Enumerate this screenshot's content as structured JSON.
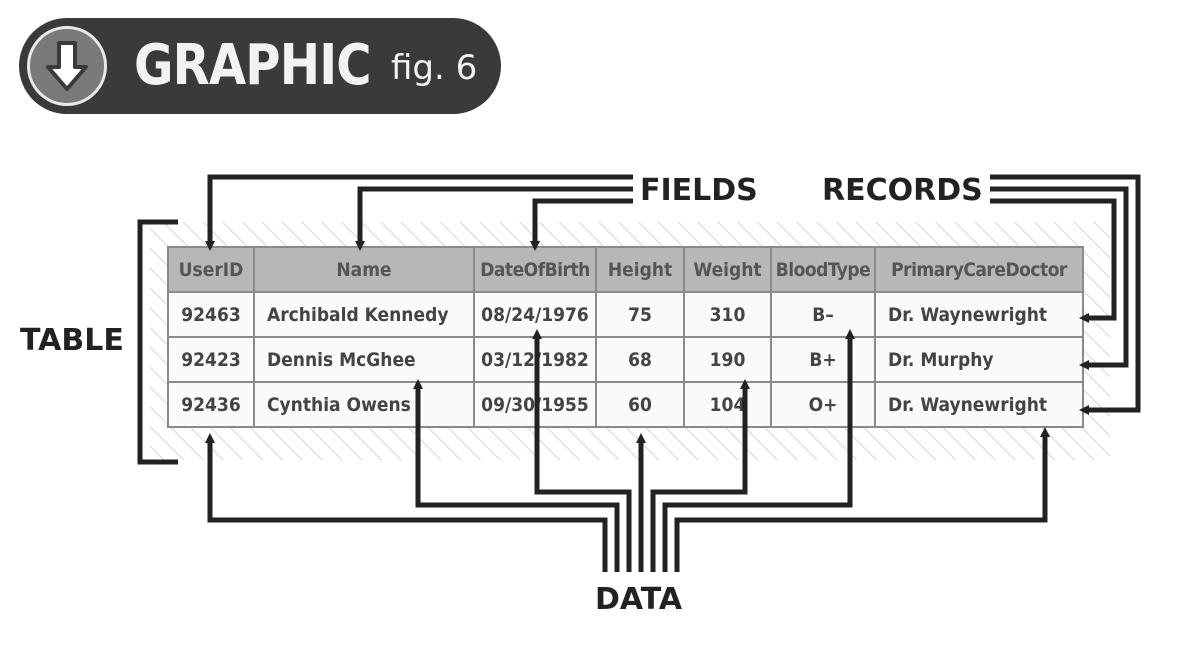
{
  "header": {
    "title": "GRAPHIC",
    "subtitle": "fig. 6",
    "icon": "arrow-down-icon"
  },
  "labels": {
    "fields": "FIELDS",
    "records": "RECORDS",
    "table": "TABLE",
    "data": "DATA"
  },
  "table": {
    "columns": [
      "UserID",
      "Name",
      "DateOfBirth",
      "Height",
      "Weight",
      "BloodType",
      "PrimaryCareDoctor"
    ],
    "rows": [
      [
        "92463",
        "Archibald Kennedy",
        "08/24/1976",
        "75",
        "310",
        "B–",
        "Dr. Waynewright"
      ],
      [
        "92423",
        "Dennis McGhee",
        "03/12/1982",
        "68",
        "190",
        "B+",
        "Dr. Murphy"
      ],
      [
        "92436",
        "Cynthia Owens",
        "09/30/1955",
        "60",
        "104",
        "O+",
        "Dr. Waynewright"
      ]
    ]
  },
  "colors": {
    "header_bg": "#b7b7b7",
    "border": "#8a8a8a",
    "ink": "#222222",
    "pill": "#3a3a3a"
  }
}
